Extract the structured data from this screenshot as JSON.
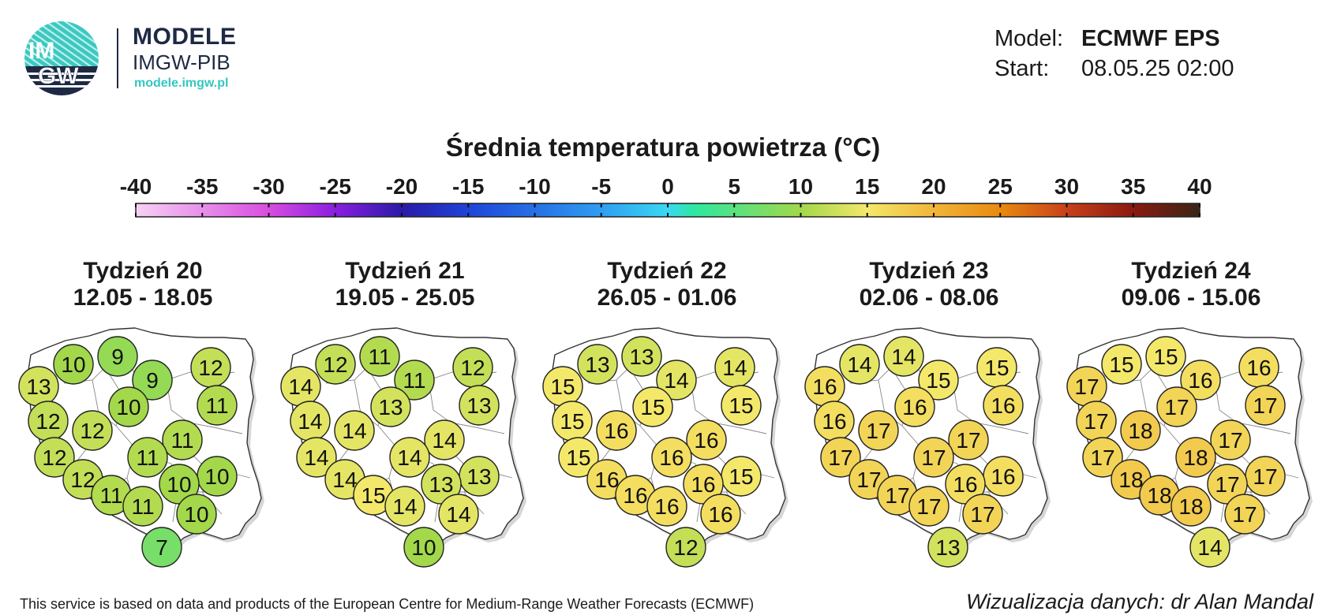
{
  "brand": {
    "logo_text_top": "IM",
    "logo_text_bottom": "GW",
    "title": "MODELE",
    "subtitle": "IMGW-PIB",
    "url": "modele.imgw.pl"
  },
  "model_info": {
    "model_label": "Model:",
    "model_value": "ECMWF EPS",
    "start_label": "Start:",
    "start_value": "08.05.25 02:00"
  },
  "title": "Średnia temperatura powietrza (°C)",
  "colorbar": {
    "ticks": [
      "-40",
      "-35",
      "-30",
      "-25",
      "-20",
      "-15",
      "-10",
      "-5",
      "0",
      "5",
      "10",
      "15",
      "20",
      "25",
      "30",
      "35",
      "40"
    ],
    "min": -40,
    "max": 40,
    "stops": [
      {
        "v": -40,
        "color": "#f7d2f4"
      },
      {
        "v": -30,
        "color": "#d84de0"
      },
      {
        "v": -25,
        "color": "#8a1fe0"
      },
      {
        "v": -20,
        "color": "#2a1aa8"
      },
      {
        "v": -15,
        "color": "#1e44d8"
      },
      {
        "v": -5,
        "color": "#2f9ef2"
      },
      {
        "v": 0,
        "color": "#3ad8f2"
      },
      {
        "v": 2,
        "color": "#2ee8a0"
      },
      {
        "v": 10,
        "color": "#a2d84a"
      },
      {
        "v": 15,
        "color": "#f4e86a"
      },
      {
        "v": 20,
        "color": "#f0b63a"
      },
      {
        "v": 25,
        "color": "#ea8a10"
      },
      {
        "v": 30,
        "color": "#c8401a"
      },
      {
        "v": 35,
        "color": "#8a1a10"
      },
      {
        "v": 40,
        "color": "#3a2418"
      }
    ]
  },
  "weeks": [
    {
      "title": "Tydzień 20",
      "dates": "12.05 - 18.05",
      "values": [
        10,
        9,
        9,
        13,
        12,
        11,
        10,
        12,
        12,
        11,
        11,
        12,
        10,
        10,
        12,
        11,
        11,
        10,
        7
      ]
    },
    {
      "title": "Tydzień 21",
      "dates": "19.05 - 25.05",
      "values": [
        12,
        11,
        11,
        14,
        12,
        13,
        13,
        14,
        14,
        14,
        14,
        14,
        13,
        13,
        14,
        15,
        14,
        14,
        10
      ]
    },
    {
      "title": "Tydzień 22",
      "dates": "26.05 - 01.06",
      "values": [
        13,
        13,
        14,
        15,
        14,
        15,
        15,
        15,
        16,
        16,
        16,
        15,
        15,
        16,
        16,
        16,
        16,
        16,
        12
      ]
    },
    {
      "title": "Tydzień 23",
      "dates": "02.06 - 08.06",
      "values": [
        14,
        14,
        15,
        16,
        15,
        16,
        16,
        16,
        17,
        17,
        17,
        17,
        16,
        16,
        17,
        17,
        17,
        17,
        13
      ]
    },
    {
      "title": "Tydzień 24",
      "dates": "09.06 - 15.06",
      "values": [
        15,
        15,
        16,
        17,
        16,
        17,
        17,
        17,
        18,
        17,
        18,
        17,
        17,
        17,
        18,
        18,
        18,
        17,
        14
      ]
    }
  ],
  "footer": {
    "attribution": "This service is based on data and products of the European Centre for Medium-Range Weather Forecasts (ECMWF)",
    "credit": "Wizualizacja danych: dr Alan Mandal"
  }
}
